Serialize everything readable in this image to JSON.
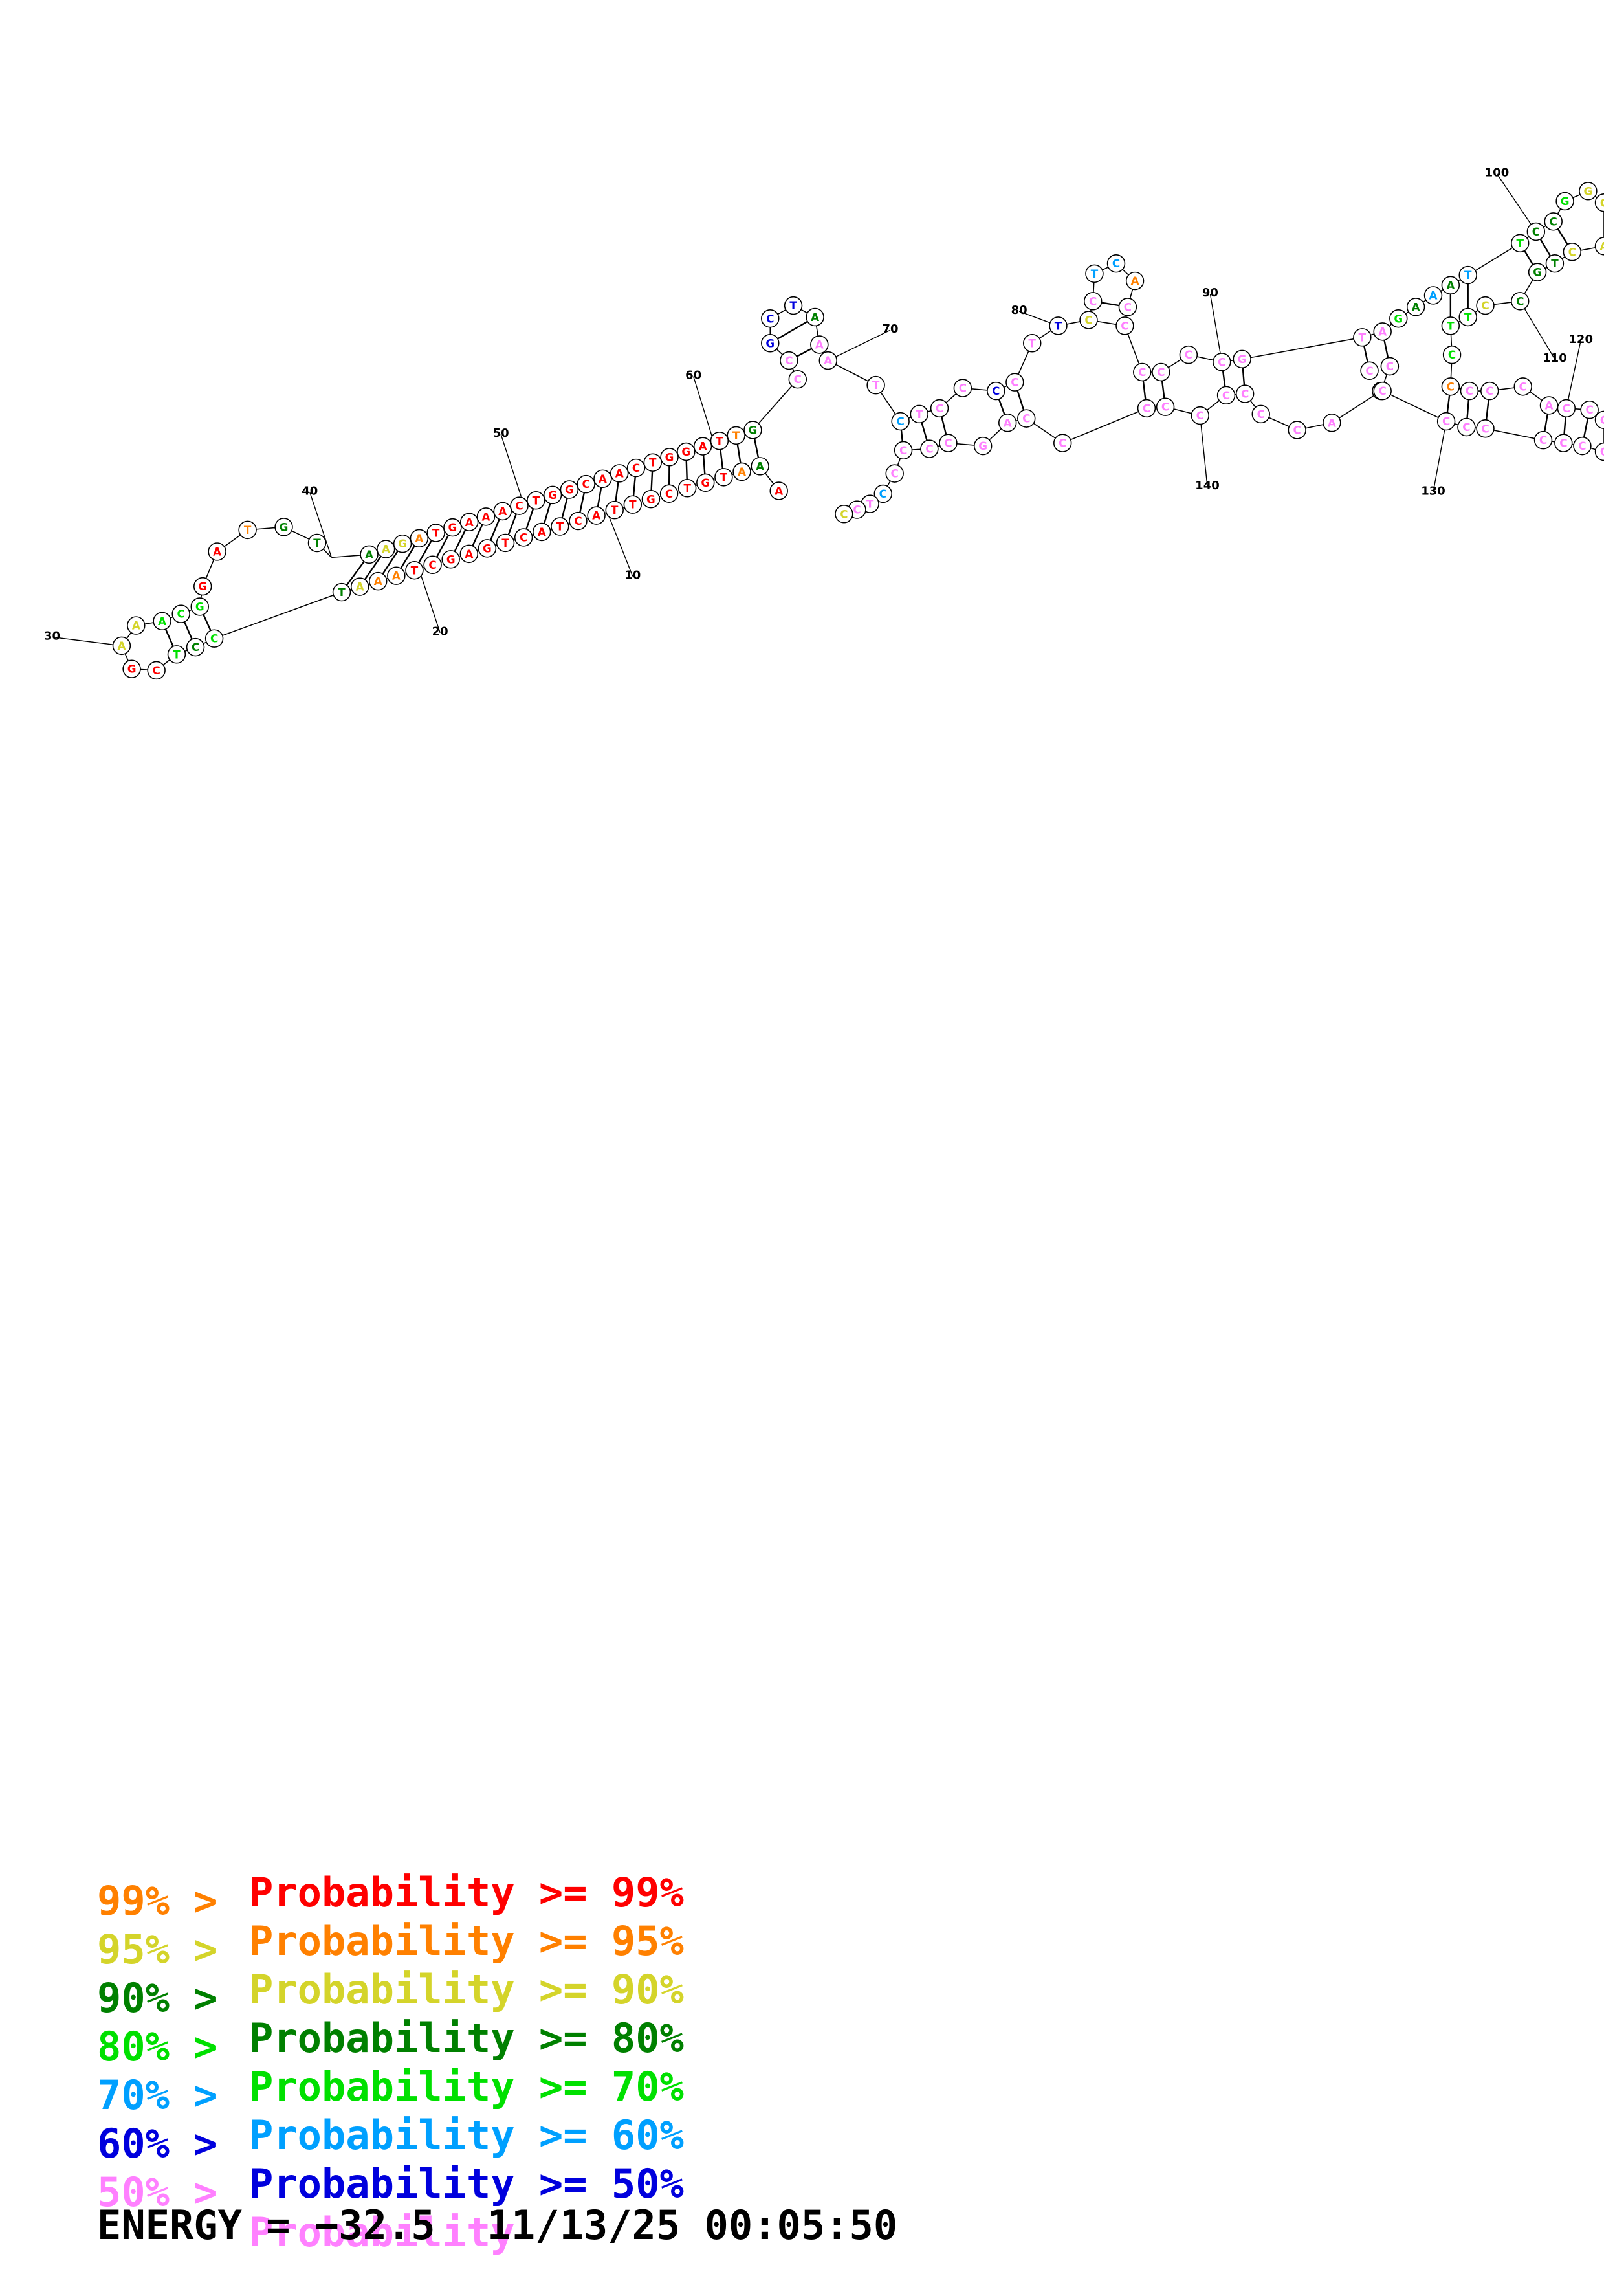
{
  "colors": {
    "p99": "#ff0000",
    "p95": "#ff8000",
    "p90": "#d4d42a",
    "p80": "#008000",
    "p70": "#00e000",
    "p60": "#00a0ff",
    "p50": "#0000dd",
    "plow": "#ff80ff"
  },
  "legend": [
    {
      "lower": "",
      "upper": "Probability >= 99%",
      "color": "p99"
    },
    {
      "lower": "99% >",
      "upper": "Probability >= 95%",
      "color": "p95"
    },
    {
      "lower": "95% >",
      "upper": "Probability >= 90%",
      "color": "p90"
    },
    {
      "lower": "90% >",
      "upper": "Probability >= 80%",
      "color": "p80"
    },
    {
      "lower": "80% >",
      "upper": "Probability >= 70%",
      "color": "p70"
    },
    {
      "lower": "70% >",
      "upper": "Probability >= 60%",
      "color": "p60"
    },
    {
      "lower": "60% >",
      "upper": "Probability >= 50%",
      "color": "p50"
    },
    {
      "lower": "50% >",
      "upper": "Probability",
      "color": "plow"
    }
  ],
  "footer": {
    "energy": "ENERGY = −32.5",
    "timestamp": "11/13/25 00:05:50"
  },
  "position_labels": [
    "10",
    "20",
    "30",
    "40",
    "50",
    "60",
    "70",
    "80",
    "90",
    "100",
    "110",
    "120",
    "130",
    "140"
  ],
  "stem_5p": "AAGATGAAACTGGCAACTGGAT",
  "stem_3p": "TAAATCGAGTCATCATTGCTGT",
  "hairpin_a": "CCTCGAA",
  "loop_b": "GATGT",
  "terminal_hairpin": "CCGCTAA",
  "segment_c": "TCTCCCCTTCCCCCCGTAATACCCCCCCCCAGCCCCCTCCCCCCGCCCAATGAGCCCCTCC",
  "segment_d": "GAAATTCCGGCACTGCCTTCCCCCACCCCCCCCC"
}
